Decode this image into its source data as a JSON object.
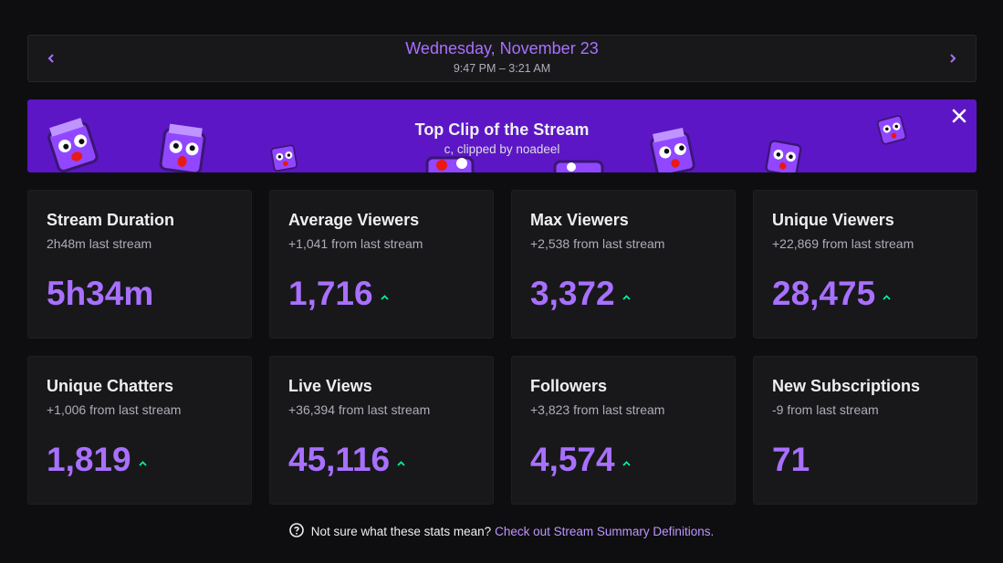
{
  "header": {
    "prev_label": "‹",
    "next_label": "›",
    "date": "Wednesday, November 23",
    "time_range": "9:47 PM – 3:21 AM"
  },
  "banner": {
    "title": "Top Clip of the Stream",
    "subtitle": "c, clipped by noadeel",
    "background_color": "#5c16c5",
    "close_icon": "close-icon",
    "emote_icon": "cube-emote-icon"
  },
  "stats": [
    {
      "label": "Stream Duration",
      "delta": "2h48m last stream",
      "value": "5h34m",
      "trend": "none"
    },
    {
      "label": "Average Viewers",
      "delta": "+1,041 from last stream",
      "value": "1,716",
      "trend": "up"
    },
    {
      "label": "Max Viewers",
      "delta": "+2,538 from last stream",
      "value": "3,372",
      "trend": "up"
    },
    {
      "label": "Unique Viewers",
      "delta": "+22,869 from last stream",
      "value": "28,475",
      "trend": "up"
    },
    {
      "label": "Unique Chatters",
      "delta": "+1,006 from last stream",
      "value": "1,819",
      "trend": "up"
    },
    {
      "label": "Live Views",
      "delta": "+36,394 from last stream",
      "value": "45,116",
      "trend": "up"
    },
    {
      "label": "Followers",
      "delta": "+3,823 from last stream",
      "value": "4,574",
      "trend": "up"
    },
    {
      "label": "New Subscriptions",
      "delta": "-9 from last stream",
      "value": "71",
      "trend": "none"
    }
  ],
  "footer": {
    "question": "Not sure what these stats mean?",
    "link": "Check out Stream Summary Definitions.",
    "icon": "question-circle-icon"
  },
  "colors": {
    "accent": "#a970ff",
    "trend_up": "#00f593",
    "background": "#0e0e10",
    "card": "#18181b"
  }
}
